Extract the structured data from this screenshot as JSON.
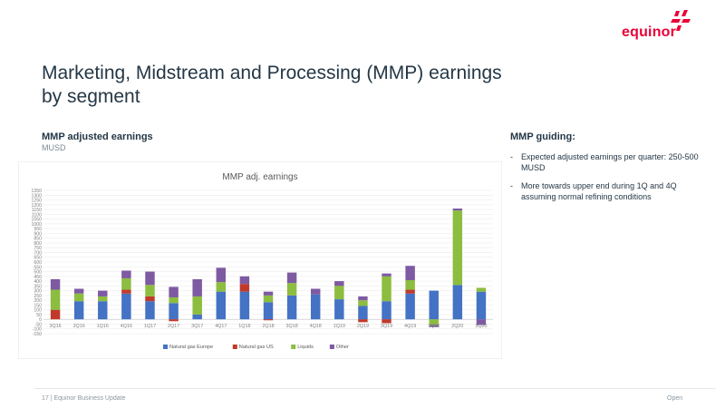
{
  "logo": {
    "text": "equinor"
  },
  "title": "Marketing, Midstream and Processing (MMP) earnings by segment",
  "chart_heading": "MMP adjusted earnings",
  "chart_unit": "MUSD",
  "guiding": {
    "title": "MMP guiding:",
    "items": [
      "Expected adjusted earnings per quarter: 250-500 MUSD",
      "More towards upper end during 1Q and 4Q assuming normal  refining conditions"
    ]
  },
  "footer": {
    "left": "17 | Equinor Business Update",
    "right": "Open"
  },
  "chart_data": {
    "type": "bar",
    "stacked": true,
    "title": "MMP adj. earnings",
    "ylim": [
      -150,
      1350
    ],
    "yticks": [
      -150,
      -100,
      -50,
      0,
      50,
      100,
      150,
      200,
      250,
      300,
      350,
      400,
      450,
      500,
      550,
      600,
      650,
      700,
      750,
      800,
      850,
      900,
      950,
      1000,
      1050,
      1100,
      1150,
      1200,
      1250,
      1300,
      1350
    ],
    "grid": true,
    "legend_position": "bottom",
    "categories": [
      "3Q16",
      "2Q16",
      "1Q16",
      "4Q16",
      "1Q17",
      "2Q17",
      "3Q17",
      "4Q17",
      "1Q18",
      "2Q18",
      "3Q18",
      "4Q18",
      "1Q19",
      "2Q19",
      "3Q19",
      "4Q19",
      "1Q20",
      "2Q20",
      "3Q20"
    ],
    "series": [
      {
        "name": "Natural gas Europe",
        "color": "#4472c4",
        "values": [
          0,
          190,
          190,
          270,
          190,
          170,
          50,
          290,
          290,
          180,
          250,
          260,
          210,
          140,
          190,
          270,
          300,
          360,
          290
        ]
      },
      {
        "name": "Natural gas US",
        "color": "#c0392b",
        "values": [
          100,
          0,
          0,
          40,
          50,
          -20,
          0,
          0,
          80,
          -10,
          0,
          0,
          0,
          -30,
          -40,
          40,
          0,
          0,
          0
        ]
      },
      {
        "name": "Liquids",
        "color": "#8cbd3f",
        "values": [
          210,
          80,
          50,
          120,
          120,
          60,
          190,
          100,
          0,
          70,
          130,
          0,
          140,
          60,
          260,
          100,
          -60,
          780,
          40
        ]
      },
      {
        "name": "Other",
        "color": "#7e5aa2",
        "values": [
          110,
          50,
          60,
          80,
          140,
          110,
          180,
          150,
          80,
          40,
          110,
          60,
          50,
          40,
          30,
          150,
          -20,
          20,
          -60
        ]
      }
    ]
  }
}
